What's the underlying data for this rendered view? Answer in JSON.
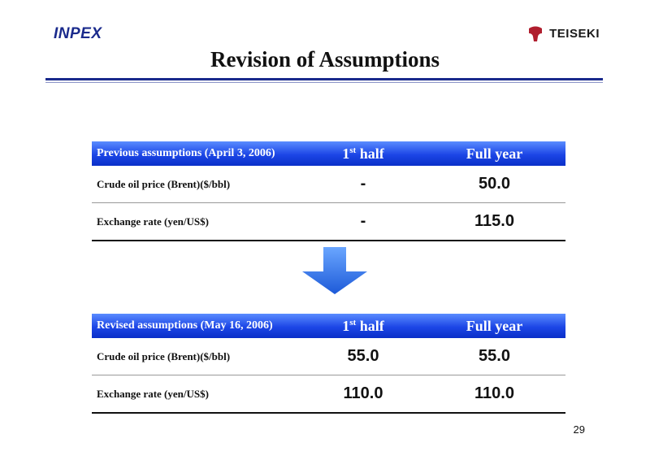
{
  "header": {
    "logo_left": "INPEX",
    "logo_right": "TEISEKI",
    "title": "Revision of Assumptions"
  },
  "previous": {
    "header_label": "Previous assumptions (April 3, 2006)",
    "col1_main": "1",
    "col1_sup": "st",
    "col1_rest": " half",
    "col2": "Full year",
    "rows": [
      {
        "label": "Crude oil price (Brent)($/bbl)",
        "half": "-",
        "full": "50.0"
      },
      {
        "label": "Exchange rate (yen/US$)",
        "half": "-",
        "full": "115.0"
      }
    ]
  },
  "revised": {
    "header_label": "Revised assumptions (May 16, 2006)",
    "col1_main": "1",
    "col1_sup": "st",
    "col1_rest": " half",
    "col2": "Full year",
    "rows": [
      {
        "label": "Crude oil price (Brent)($/bbl)",
        "half": "55.0",
        "full": "55.0"
      },
      {
        "label": "Exchange rate (yen/US$)",
        "half": "110.0",
        "full": "110.0"
      }
    ]
  },
  "page_number": "29",
  "colors": {
    "header_blue": "#1c46e6",
    "rule_navy": "#1a2a8c",
    "arrow_blue": "#2a6ee8",
    "teiseki_red": "#b01e2e"
  },
  "icons": {
    "arrow": "down-arrow-icon",
    "teiseki_mark": "teiseki-logo-mark"
  }
}
